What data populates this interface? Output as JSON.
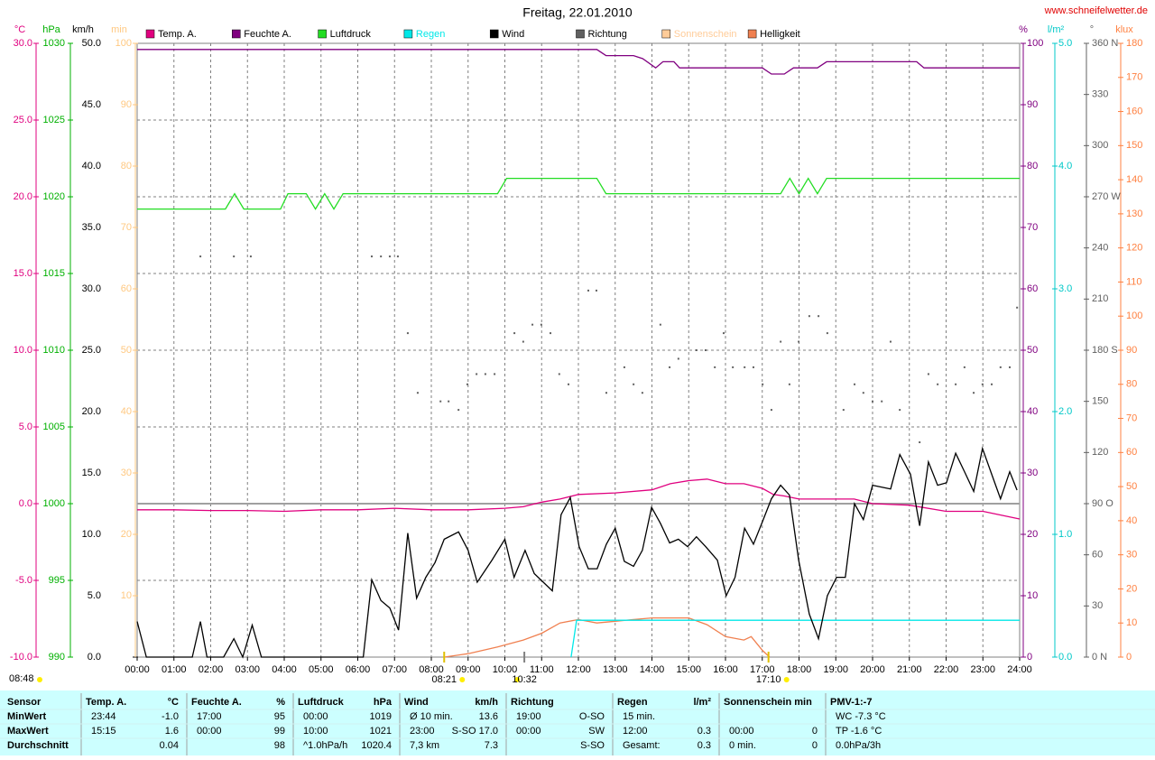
{
  "chart_data": {
    "type": "line",
    "title": "Freitag, 22.01.2010",
    "source": "www.schneifelwetter.de",
    "xlim": [
      0,
      24
    ],
    "xticks": [
      {
        "value": 0,
        "label": "00:00"
      },
      {
        "value": 1,
        "label": "01:00"
      },
      {
        "value": 2,
        "label": "02:00"
      },
      {
        "value": 3,
        "label": "03:00"
      },
      {
        "value": 4,
        "label": "04:00"
      },
      {
        "value": 5,
        "label": "05:00"
      },
      {
        "value": 6,
        "label": "06:00"
      },
      {
        "value": 7,
        "label": "07:00"
      },
      {
        "value": 8,
        "label": "08:00"
      },
      {
        "value": 9,
        "label": "09:00"
      },
      {
        "value": 10,
        "label": "10:00"
      },
      {
        "value": 11,
        "label": "11:00"
      },
      {
        "value": 12,
        "label": "12:00"
      },
      {
        "value": 13,
        "label": "13:00"
      },
      {
        "value": 14,
        "label": "14:00"
      },
      {
        "value": 15,
        "label": "15:00"
      },
      {
        "value": 16,
        "label": "16:00"
      },
      {
        "value": 17,
        "label": "17:00"
      },
      {
        "value": 18,
        "label": "18:00"
      },
      {
        "value": 19,
        "label": "19:00"
      },
      {
        "value": 20,
        "label": "20:00"
      },
      {
        "value": 21,
        "label": "21:00"
      },
      {
        "value": 22,
        "label": "22:00"
      },
      {
        "value": 23,
        "label": "23:00"
      },
      {
        "value": 24,
        "label": "24:00"
      }
    ],
    "grid": true,
    "zero_line": true,
    "y_axes": [
      {
        "unit": "°C",
        "color": "#e0007f",
        "lim": [
          -10,
          30
        ],
        "ticks": [
          {
            "value": -10,
            "label": "-10.0"
          },
          {
            "value": -5,
            "label": "-5.0"
          },
          {
            "value": 0,
            "label": "0.0"
          },
          {
            "value": 5,
            "label": "5.0"
          },
          {
            "value": 10,
            "label": "10.0"
          },
          {
            "value": 15,
            "label": "15.0"
          },
          {
            "value": 20,
            "label": "20.0"
          },
          {
            "value": 25,
            "label": "25.0"
          },
          {
            "value": 30,
            "label": "30.0"
          }
        ]
      },
      {
        "unit": "hPa",
        "color": "#00b000",
        "lim": [
          990,
          1030
        ],
        "ticks": [
          990,
          995,
          1000,
          1005,
          1010,
          1015,
          1020,
          1025,
          1030
        ]
      },
      {
        "unit": "km/h",
        "color": "#000000",
        "lim": [
          0,
          50
        ],
        "ticks": [
          {
            "value": 0,
            "label": "0.0"
          },
          {
            "value": 5,
            "label": "5.0"
          },
          {
            "value": 10,
            "label": "10.0"
          },
          {
            "value": 15,
            "label": "15.0"
          },
          {
            "value": 20,
            "label": "20.0"
          },
          {
            "value": 25,
            "label": "25.0"
          },
          {
            "value": 30,
            "label": "30.0"
          },
          {
            "value": 35,
            "label": "35.0"
          },
          {
            "value": 40,
            "label": "40.0"
          },
          {
            "value": 45,
            "label": "45.0"
          },
          {
            "value": 50,
            "label": "50.0"
          }
        ]
      },
      {
        "unit": "min",
        "color": "#ffc880",
        "lim": [
          0,
          100
        ],
        "ticks": [
          10,
          20,
          30,
          40,
          50,
          60,
          70,
          80,
          90,
          100
        ]
      },
      {
        "unit": "%",
        "color": "#800080",
        "lim": [
          0,
          100
        ],
        "ticks": [
          0,
          10,
          20,
          30,
          40,
          50,
          60,
          70,
          80,
          90,
          100
        ]
      },
      {
        "unit": "l/m²",
        "color": "#00c8c8",
        "lim": [
          0,
          5
        ],
        "ticks": [
          {
            "value": 0,
            "label": "0.0"
          },
          {
            "value": 1,
            "label": "1.0"
          },
          {
            "value": 2,
            "label": "2.0"
          },
          {
            "value": 3,
            "label": "3.0"
          },
          {
            "value": 4,
            "label": "4.0"
          },
          {
            "value": 5,
            "label": "5.0"
          }
        ]
      },
      {
        "unit": "°",
        "color": "#606060",
        "lim": [
          0,
          360
        ],
        "ticks": [
          {
            "value": 0,
            "label": "0   N"
          },
          30,
          60,
          {
            "value": 90,
            "label": "90  O"
          },
          120,
          150,
          {
            "value": 180,
            "label": "180 S"
          },
          210,
          240,
          {
            "value": 270,
            "label": "270 W"
          },
          300,
          330,
          {
            "value": 360,
            "label": "360 N"
          }
        ]
      },
      {
        "unit": "klux",
        "color": "#ff8040",
        "lim": [
          0,
          180
        ],
        "ticks": [
          0,
          10,
          20,
          30,
          40,
          50,
          60,
          70,
          80,
          90,
          100,
          110,
          120,
          130,
          140,
          150,
          160,
          170,
          180
        ]
      }
    ],
    "series": [
      {
        "name": "Temp. A.",
        "color": "#e0007f",
        "axis": 0,
        "style": "line",
        "x": [
          0,
          1,
          2,
          3,
          4,
          5,
          6,
          7,
          8,
          9,
          10,
          10.5,
          11,
          11.5,
          12,
          13,
          14,
          14.5,
          15,
          15.5,
          16,
          16.5,
          17,
          17.3,
          17.6,
          18,
          19,
          19.5,
          20,
          21,
          22,
          23,
          24
        ],
        "values": [
          -0.4,
          -0.4,
          -0.45,
          -0.45,
          -0.5,
          -0.4,
          -0.4,
          -0.3,
          -0.4,
          -0.4,
          -0.3,
          -0.2,
          0.1,
          0.3,
          0.6,
          0.7,
          0.9,
          1.3,
          1.5,
          1.6,
          1.3,
          1.3,
          1.0,
          0.6,
          0.5,
          0.3,
          0.3,
          0.3,
          0.0,
          -0.1,
          -0.5,
          -0.5,
          -1.0
        ]
      },
      {
        "name": "Feuchte A.",
        "color": "#800080",
        "axis": 4,
        "style": "line",
        "x": [
          0,
          12.5,
          12.75,
          13.5,
          13.75,
          14.1,
          14.3,
          14.6,
          14.75,
          17,
          17.25,
          17.6,
          17.85,
          18.5,
          18.75,
          21.2,
          21.4,
          24
        ],
        "values": [
          99,
          99,
          98,
          98,
          97.5,
          96,
          97,
          97,
          96,
          96,
          95,
          95,
          96,
          96,
          97,
          97,
          96,
          96
        ]
      },
      {
        "name": "Luftdruck",
        "color": "#22dd22",
        "axis": 1,
        "style": "line",
        "x": [
          0,
          2.4,
          2.65,
          2.9,
          3.9,
          4.1,
          4.6,
          4.85,
          5.1,
          5.35,
          5.6,
          9.8,
          10.05,
          12.5,
          12.75,
          17.5,
          17.75,
          18,
          18.25,
          18.5,
          18.75,
          24
        ],
        "values": [
          1019.2,
          1019.2,
          1020.2,
          1019.2,
          1019.2,
          1020.2,
          1020.2,
          1019.2,
          1020.2,
          1019.2,
          1020.2,
          1020.2,
          1021.2,
          1021.2,
          1020.2,
          1020.2,
          1021.2,
          1020.2,
          1021.2,
          1020.2,
          1021.2,
          1021.2
        ]
      },
      {
        "name": "Regen",
        "color": "#00e8e8",
        "axis": 5,
        "style": "line",
        "x": [
          11.8,
          11.95,
          24
        ],
        "values": [
          0,
          0.3,
          0.3
        ]
      },
      {
        "name": "Wind",
        "color": "#000000",
        "axis": 2,
        "style": "line",
        "x": [
          0,
          0.25,
          1.5,
          1.72,
          1.9,
          2.35,
          2.63,
          2.87,
          3.13,
          3.38,
          6.15,
          6.38,
          6.63,
          6.87,
          7.11,
          7.36,
          7.6,
          7.85,
          8.1,
          8.35,
          8.74,
          9.0,
          9.25,
          9.65,
          10.0,
          10.25,
          10.55,
          10.8,
          11.29,
          11.53,
          11.78,
          12.02,
          12.27,
          12.51,
          12.76,
          13.0,
          13.25,
          13.5,
          13.74,
          13.99,
          14.23,
          14.48,
          14.72,
          14.97,
          15.21,
          15.46,
          15.78,
          16.02,
          16.26,
          16.52,
          16.76,
          17.0,
          17.25,
          17.5,
          17.74,
          17.99,
          18.28,
          18.53,
          18.77,
          19.02,
          19.26,
          19.51,
          19.75,
          20.0,
          20.49,
          20.74,
          21.03,
          21.28,
          21.52,
          21.77,
          22.01,
          22.26,
          22.5,
          22.75,
          22.99,
          23.24,
          23.48,
          23.73,
          23.93
        ],
        "values": [
          2.9,
          0,
          0,
          2.9,
          0,
          0,
          1.5,
          0,
          2.6,
          0,
          0,
          6.3,
          4.6,
          4.0,
          2.2,
          10.1,
          4.8,
          6.5,
          7.7,
          9.6,
          10.2,
          8.7,
          6.1,
          7.9,
          9.6,
          6.5,
          8.7,
          6.8,
          5.4,
          11.6,
          13.0,
          9.0,
          7.2,
          7.2,
          9.2,
          10.5,
          7.8,
          7.4,
          8.7,
          12.2,
          10.9,
          9.3,
          9.6,
          9.0,
          9.8,
          9.0,
          7.9,
          5.0,
          6.5,
          10.5,
          9.2,
          11.0,
          12.9,
          14.0,
          13.2,
          7.9,
          3.5,
          1.5,
          5.0,
          6.5,
          6.5,
          12.5,
          11.2,
          14.0,
          13.7,
          16.5,
          14.9,
          10.7,
          15.9,
          14.0,
          14.2,
          16.6,
          15.1,
          13.5,
          17.0,
          14.9,
          12.9,
          15.1,
          13.6
        ]
      },
      {
        "name": "Richtung",
        "color": "#606060",
        "axis": 6,
        "style": "dots",
        "x": [
          1.72,
          2.63,
          3.09,
          6.38,
          6.63,
          6.87,
          7.09,
          7.36,
          7.63,
          8.25,
          8.47,
          8.74,
          8.98,
          9.23,
          9.47,
          9.72,
          10.26,
          10.5,
          10.75,
          10.99,
          11.24,
          11.48,
          11.73,
          12.27,
          12.49,
          12.76,
          13.25,
          13.5,
          13.74,
          14.23,
          14.48,
          14.72,
          15.21,
          15.46,
          15.71,
          15.95,
          16.2,
          16.52,
          16.76,
          17.01,
          17.25,
          17.5,
          17.74,
          17.99,
          18.28,
          18.53,
          18.77,
          19.21,
          19.51,
          19.75,
          20.0,
          20.25,
          20.49,
          20.74,
          21.28,
          21.52,
          21.77,
          22.26,
          22.5,
          22.75,
          22.99,
          23.24,
          23.48,
          23.73,
          23.93
        ],
        "values": [
          235,
          235,
          235,
          235,
          235,
          235,
          235,
          190,
          155,
          150,
          150,
          145,
          160,
          166,
          166,
          166,
          190,
          185,
          195,
          195,
          190,
          166,
          160,
          215,
          215,
          155,
          170,
          160,
          155,
          195,
          170,
          175,
          180,
          180,
          170,
          190,
          170,
          170,
          170,
          160,
          145,
          185,
          160,
          185,
          200,
          200,
          190,
          145,
          160,
          155,
          150,
          150,
          185,
          145,
          126,
          166,
          160,
          160,
          170,
          155,
          160,
          160,
          170,
          170,
          205
        ]
      },
      {
        "name": "Sonnenschein",
        "color": "#ffcc99",
        "axis": 3,
        "style": "line",
        "x": [],
        "values": []
      },
      {
        "name": "Helligkeit",
        "color": "#f08050",
        "axis": 7,
        "style": "line",
        "x": [
          8.35,
          9,
          9.8,
          10.5,
          11,
          11.5,
          12,
          12.5,
          13,
          13.5,
          14,
          15,
          15.5,
          16,
          16.5,
          16.7,
          17,
          17.2
        ],
        "values": [
          0,
          1,
          3,
          5,
          7,
          10,
          11,
          10,
          10.5,
          11,
          11.5,
          11.5,
          9.5,
          6,
          5,
          6,
          2,
          0
        ]
      }
    ],
    "annotations": [
      {
        "label": "08:21",
        "x": 8.35
      },
      {
        "label": "10:32",
        "x": 10.53
      },
      {
        "label": "17:10",
        "x": 17.17
      }
    ],
    "day_length": "08:48"
  },
  "table": {
    "columns": [
      {
        "name": "Sensor"
      },
      {
        "name": "Temp. A.",
        "unit": "°C"
      },
      {
        "name": "Feuchte A.",
        "unit": "%"
      },
      {
        "name": "Luftdruck",
        "unit": "hPa"
      },
      {
        "name": "Wind",
        "unit": "km/h"
      },
      {
        "name": "Richtung"
      },
      {
        "name": "Regen",
        "unit": "l/m²"
      },
      {
        "name": "Sonnenschein min"
      },
      {
        "name": "PMV-1:-7"
      }
    ],
    "rows": [
      {
        "label": "MinWert",
        "cells": [
          {
            "left": "23:44",
            "right": "-1.0"
          },
          {
            "left": "17:00",
            "right": "95"
          },
          {
            "left": "00:00",
            "right": "1019"
          },
          {
            "left": "Ø 10 min.",
            "right": "13.6"
          },
          {
            "left": "19:00",
            "right": "O-SO"
          },
          {
            "left": "15 min."
          },
          {},
          {
            "left": "WC -7.3 °C"
          }
        ]
      },
      {
        "label": "MaxWert",
        "cells": [
          {
            "left": "15:15",
            "right": "1.6"
          },
          {
            "left": "00:00",
            "right": "99"
          },
          {
            "left": "10:00",
            "right": "1021"
          },
          {
            "left": "23:00",
            "right": "S-SO 17.0"
          },
          {
            "left": "00:00",
            "right": "SW"
          },
          {
            "left": "12:00",
            "right": "0.3"
          },
          {
            "left": "00:00",
            "right": "0"
          },
          {
            "left": "TP -1.6 °C"
          }
        ]
      },
      {
        "label": "Durchschnitt",
        "cells": [
          {
            "right": "0.04"
          },
          {
            "right": "98"
          },
          {
            "left": "^1.0hPa/h",
            "right": "1020.4"
          },
          {
            "left": "7,3 km",
            "right": "7.3"
          },
          {
            "right": "S-SO"
          },
          {
            "left": "Gesamt:",
            "right": "0.3"
          },
          {
            "left": "0 min.",
            "right": "0"
          },
          {
            "left": "0.0hPa/3h"
          }
        ]
      }
    ]
  }
}
